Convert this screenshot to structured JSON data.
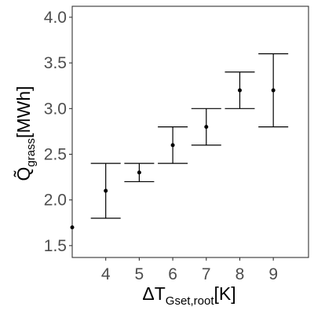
{
  "chart_data": {
    "type": "scatter",
    "title": "",
    "xlabel": {
      "main": "ΔT",
      "subscript": "Gset,root",
      "unit": "[K]"
    },
    "ylabel": {
      "main": "Q̃",
      "subscript": "grass",
      "unit": "[MWh]"
    },
    "xlim": [
      3,
      10.05
    ],
    "ylim": [
      1.37,
      4.12
    ],
    "x_ticks": [
      4,
      5,
      6,
      7,
      8,
      9
    ],
    "y_ticks": [
      1.5,
      2.0,
      2.5,
      3.0,
      3.5,
      4.0
    ],
    "x_tick_labels": [
      "4",
      "5",
      "6",
      "7",
      "8",
      "9"
    ],
    "y_tick_labels": [
      "1.5",
      "2.0",
      "2.5",
      "3.0",
      "3.5",
      "4.0"
    ],
    "grid": false,
    "legend": "none",
    "series": [
      {
        "points": [
          {
            "x": 3,
            "y": 1.7,
            "ymin": null,
            "ymax": null
          },
          {
            "x": 4,
            "y": 2.1,
            "ymin": 1.8,
            "ymax": 2.4
          },
          {
            "x": 5,
            "y": 2.3,
            "ymin": 2.2,
            "ymax": 2.4
          },
          {
            "x": 6,
            "y": 2.6,
            "ymin": 2.4,
            "ymax": 2.8
          },
          {
            "x": 7,
            "y": 2.8,
            "ymin": 2.6,
            "ymax": 3.0
          },
          {
            "x": 8,
            "y": 3.2,
            "ymin": 3.0,
            "ymax": 3.4
          },
          {
            "x": 9,
            "y": 3.2,
            "ymin": 2.8,
            "ymax": 3.6
          }
        ]
      }
    ],
    "colors": {
      "point": "#000000",
      "errorbar": "#000000",
      "axis": "#333333",
      "tick_text": "#4d4d4d"
    }
  }
}
